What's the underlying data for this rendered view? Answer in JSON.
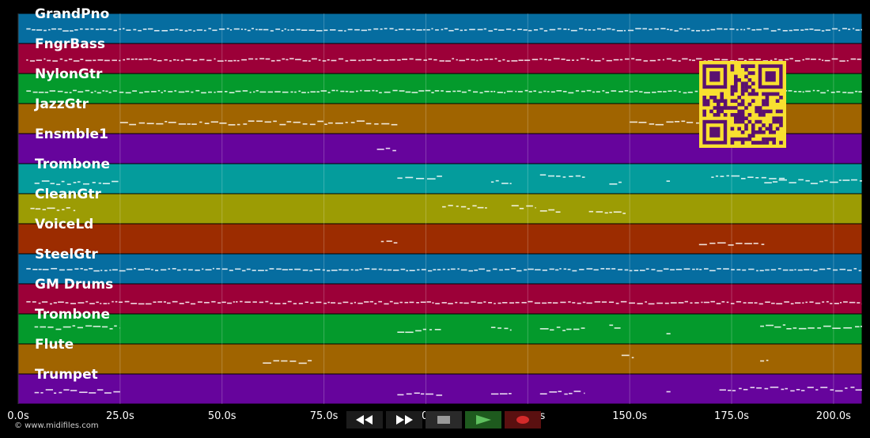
{
  "tracks": [
    {
      "name": "GrandPno",
      "color": "#066da0"
    },
    {
      "name": "FngrBass",
      "color": "#9c0038"
    },
    {
      "name": "NylonGtr",
      "color": "#049a2c"
    },
    {
      "name": "JazzGtr",
      "color": "#a06400"
    },
    {
      "name": "Ensmble1",
      "color": "#66049c"
    },
    {
      "name": "Trombone",
      "color": "#049c9c"
    },
    {
      "name": "CleanGtr",
      "color": "#9c9c04"
    },
    {
      "name": "VoiceLd",
      "color": "#9c2c00"
    },
    {
      "name": "SteelGtr",
      "color": "#066da0"
    },
    {
      "name": "GM Drums",
      "color": "#9c0038"
    },
    {
      "name": "Trombone",
      "color": "#049a2c"
    },
    {
      "name": "Flute",
      "color": "#a06400"
    },
    {
      "name": "Trumpet",
      "color": "#66049c"
    }
  ],
  "time_axis": {
    "max_seconds": 207,
    "ticks": [
      {
        "t": 0,
        "label": "0.0s"
      },
      {
        "t": 25,
        "label": "25.0s"
      },
      {
        "t": 50,
        "label": "50.0s"
      },
      {
        "t": 75,
        "label": "75.0s"
      },
      {
        "t": 100,
        "label": "100.0s"
      },
      {
        "t": 125,
        "label": "125.0s"
      },
      {
        "t": 150,
        "label": "150.0s"
      },
      {
        "t": 175,
        "label": "175.0s"
      },
      {
        "t": 200,
        "label": "200.0s"
      }
    ]
  },
  "note_activity": [
    {
      "track": 0,
      "dense": true,
      "ranges": [
        [
          2,
          207
        ]
      ]
    },
    {
      "track": 1,
      "dense": true,
      "ranges": [
        [
          2,
          207
        ]
      ]
    },
    {
      "track": 2,
      "dense": true,
      "ranges": [
        [
          2,
          207
        ]
      ]
    },
    {
      "track": 3,
      "dense": false,
      "ranges": [
        [
          25,
          93
        ],
        [
          150,
          172
        ]
      ]
    },
    {
      "track": 4,
      "dense": false,
      "ranges": [
        [
          88,
          93
        ]
      ]
    },
    {
      "track": 5,
      "dense": false,
      "ranges": [
        [
          4,
          25
        ],
        [
          93,
          104
        ],
        [
          116,
          121
        ],
        [
          128,
          139
        ],
        [
          145,
          148
        ],
        [
          159,
          160
        ],
        [
          170,
          188
        ],
        [
          183,
          207
        ]
      ]
    },
    {
      "track": 6,
      "dense": false,
      "ranges": [
        [
          3,
          14
        ],
        [
          104,
          115
        ],
        [
          121,
          127
        ],
        [
          128,
          133
        ],
        [
          140,
          149
        ]
      ]
    },
    {
      "track": 7,
      "dense": false,
      "ranges": [
        [
          89,
          93
        ],
        [
          167,
          183
        ]
      ]
    },
    {
      "track": 8,
      "dense": true,
      "ranges": [
        [
          2,
          207
        ]
      ]
    },
    {
      "track": 9,
      "dense": true,
      "ranges": [
        [
          2,
          207
        ]
      ]
    },
    {
      "track": 10,
      "dense": false,
      "ranges": [
        [
          4,
          25
        ],
        [
          93,
          104
        ],
        [
          116,
          121
        ],
        [
          128,
          139
        ],
        [
          145,
          148
        ],
        [
          159,
          160
        ],
        [
          182,
          207
        ]
      ]
    },
    {
      "track": 11,
      "dense": false,
      "ranges": [
        [
          60,
          72
        ],
        [
          148,
          151
        ],
        [
          182,
          184
        ]
      ]
    },
    {
      "track": 12,
      "dense": false,
      "ranges": [
        [
          4,
          25
        ],
        [
          93,
          104
        ],
        [
          116,
          121
        ],
        [
          128,
          139
        ],
        [
          159,
          160
        ],
        [
          172,
          207
        ]
      ]
    }
  ],
  "colors": {
    "background": "#000000",
    "qr_fg": "#f8e030",
    "qr_bg": "#5a1070",
    "rec": "#d42a2a",
    "play": "#3a9a3a"
  },
  "controls": [
    {
      "name": "rewind-button",
      "icon": "rewind-icon"
    },
    {
      "name": "fast-forward-button",
      "icon": "fast-forward-icon"
    },
    {
      "name": "stop-button",
      "icon": "stop-icon"
    },
    {
      "name": "play-button",
      "icon": "play-icon"
    },
    {
      "name": "record-button",
      "icon": "record-icon"
    }
  ],
  "copyright": "© www.midifiles.com"
}
